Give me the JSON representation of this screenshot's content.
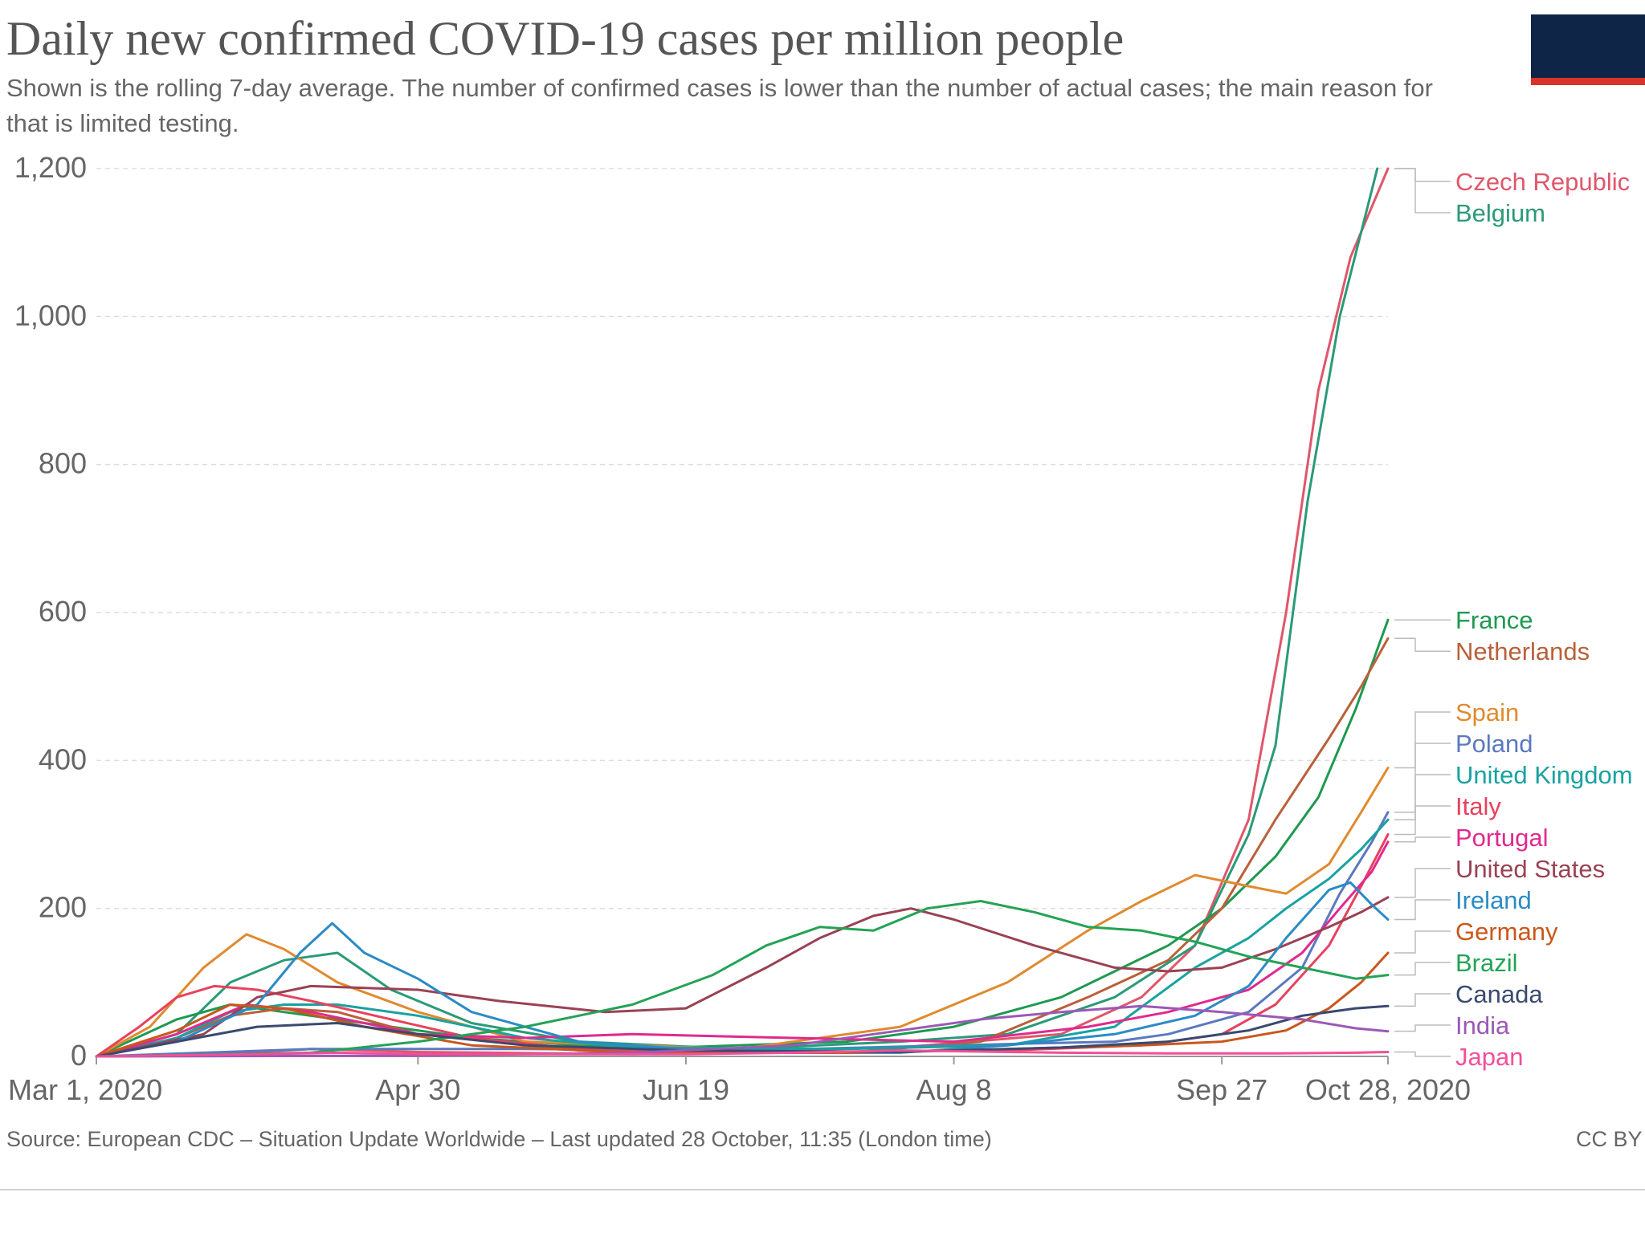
{
  "header": {
    "title": "Daily new confirmed COVID-19 cases per million people",
    "subtitle": "Shown is the rolling 7-day average. The number of confirmed cases is lower than the number of actual cases; the main reason for that is limited testing.",
    "logo_colors": {
      "background": "#0f2547",
      "stripe": "#d9342b"
    }
  },
  "footer": {
    "source": "Source: European CDC – Situation Update Worldwide – Last updated 28 October, 11:35 (London time)",
    "license": "CC BY"
  },
  "chart_data": {
    "type": "line",
    "title": "Daily new confirmed COVID-19 cases per million people",
    "xlabel": "",
    "ylabel": "",
    "x_range_days": [
      0,
      241
    ],
    "ylim": [
      0,
      1200
    ],
    "y_ticks": [
      0,
      200,
      400,
      600,
      800,
      1000,
      1200
    ],
    "y_tick_labels": [
      "0",
      "200",
      "400",
      "600",
      "800",
      "1,000",
      "1,200"
    ],
    "x_ticks": [
      {
        "day": 0,
        "label": "Mar 1, 2020"
      },
      {
        "day": 60,
        "label": "Apr 30"
      },
      {
        "day": 110,
        "label": "Jun 19"
      },
      {
        "day": 160,
        "label": "Aug 8"
      },
      {
        "day": 210,
        "label": "Sep 27"
      },
      {
        "day": 241,
        "label": "Oct 28, 2020"
      }
    ],
    "grid": "horizontal-dashed",
    "legend": "right, labels at line ends",
    "series": [
      {
        "name": "Czech Republic",
        "color": "#e0566a",
        "points": [
          [
            0,
            0
          ],
          [
            20,
            2
          ],
          [
            40,
            10
          ],
          [
            60,
            6
          ],
          [
            100,
            3
          ],
          [
            150,
            12
          ],
          [
            180,
            30
          ],
          [
            195,
            80
          ],
          [
            205,
            150
          ],
          [
            215,
            320
          ],
          [
            222,
            600
          ],
          [
            228,
            900
          ],
          [
            234,
            1080
          ],
          [
            241,
            1200
          ]
        ]
      },
      {
        "name": "Belgium",
        "color": "#2a9a77",
        "points": [
          [
            0,
            0
          ],
          [
            15,
            30
          ],
          [
            25,
            100
          ],
          [
            35,
            130
          ],
          [
            45,
            140
          ],
          [
            55,
            90
          ],
          [
            70,
            45
          ],
          [
            90,
            20
          ],
          [
            120,
            10
          ],
          [
            150,
            20
          ],
          [
            170,
            30
          ],
          [
            190,
            80
          ],
          [
            205,
            150
          ],
          [
            215,
            300
          ],
          [
            220,
            420
          ],
          [
            226,
            750
          ],
          [
            232,
            1000
          ],
          [
            239,
            1200
          ]
        ]
      },
      {
        "name": "France",
        "color": "#1e9950",
        "points": [
          [
            0,
            0
          ],
          [
            15,
            50
          ],
          [
            25,
            70
          ],
          [
            35,
            60
          ],
          [
            50,
            45
          ],
          [
            70,
            25
          ],
          [
            100,
            10
          ],
          [
            140,
            20
          ],
          [
            160,
            40
          ],
          [
            180,
            80
          ],
          [
            200,
            150
          ],
          [
            210,
            200
          ],
          [
            220,
            270
          ],
          [
            228,
            350
          ],
          [
            235,
            470
          ],
          [
            241,
            590
          ]
        ]
      },
      {
        "name": "Netherlands",
        "color": "#b9603a",
        "points": [
          [
            0,
            0
          ],
          [
            15,
            25
          ],
          [
            25,
            55
          ],
          [
            35,
            65
          ],
          [
            45,
            60
          ],
          [
            60,
            30
          ],
          [
            90,
            8
          ],
          [
            140,
            5
          ],
          [
            165,
            20
          ],
          [
            185,
            80
          ],
          [
            200,
            130
          ],
          [
            210,
            200
          ],
          [
            220,
            320
          ],
          [
            230,
            430
          ],
          [
            236,
            500
          ],
          [
            241,
            565
          ]
        ]
      },
      {
        "name": "Spain",
        "color": "#e08a2e",
        "points": [
          [
            0,
            0
          ],
          [
            10,
            40
          ],
          [
            20,
            120
          ],
          [
            28,
            165
          ],
          [
            35,
            145
          ],
          [
            45,
            100
          ],
          [
            60,
            60
          ],
          [
            80,
            20
          ],
          [
            120,
            10
          ],
          [
            150,
            40
          ],
          [
            170,
            100
          ],
          [
            185,
            170
          ],
          [
            195,
            210
          ],
          [
            205,
            245
          ],
          [
            215,
            230
          ],
          [
            222,
            220
          ],
          [
            230,
            260
          ],
          [
            236,
            330
          ],
          [
            241,
            390
          ]
        ]
      },
      {
        "name": "Poland",
        "color": "#5b79c0",
        "points": [
          [
            0,
            0
          ],
          [
            20,
            5
          ],
          [
            40,
            10
          ],
          [
            80,
            10
          ],
          [
            120,
            8
          ],
          [
            160,
            15
          ],
          [
            190,
            20
          ],
          [
            200,
            30
          ],
          [
            215,
            60
          ],
          [
            225,
            120
          ],
          [
            232,
            220
          ],
          [
            238,
            290
          ],
          [
            241,
            330
          ]
        ]
      },
      {
        "name": "United Kingdom",
        "color": "#18a2a0",
        "points": [
          [
            0,
            0
          ],
          [
            15,
            25
          ],
          [
            25,
            60
          ],
          [
            35,
            70
          ],
          [
            45,
            70
          ],
          [
            60,
            55
          ],
          [
            80,
            25
          ],
          [
            100,
            12
          ],
          [
            140,
            10
          ],
          [
            170,
            15
          ],
          [
            190,
            40
          ],
          [
            205,
            120
          ],
          [
            215,
            160
          ],
          [
            222,
            200
          ],
          [
            230,
            240
          ],
          [
            236,
            280
          ],
          [
            241,
            320
          ]
        ]
      },
      {
        "name": "Italy",
        "color": "#e7425d",
        "points": [
          [
            0,
            0
          ],
          [
            8,
            40
          ],
          [
            15,
            80
          ],
          [
            22,
            95
          ],
          [
            30,
            90
          ],
          [
            40,
            75
          ],
          [
            55,
            50
          ],
          [
            70,
            25
          ],
          [
            90,
            10
          ],
          [
            130,
            6
          ],
          [
            170,
            8
          ],
          [
            195,
            15
          ],
          [
            210,
            30
          ],
          [
            220,
            70
          ],
          [
            230,
            150
          ],
          [
            236,
            230
          ],
          [
            241,
            300
          ]
        ]
      },
      {
        "name": "Portugal",
        "color": "#e02a8e",
        "points": [
          [
            0,
            0
          ],
          [
            15,
            30
          ],
          [
            28,
            70
          ],
          [
            40,
            60
          ],
          [
            60,
            30
          ],
          [
            80,
            25
          ],
          [
            100,
            30
          ],
          [
            130,
            25
          ],
          [
            160,
            20
          ],
          [
            185,
            40
          ],
          [
            200,
            60
          ],
          [
            215,
            90
          ],
          [
            225,
            140
          ],
          [
            232,
            200
          ],
          [
            238,
            250
          ],
          [
            241,
            290
          ]
        ]
      },
      {
        "name": "United States",
        "color": "#9a4254",
        "points": [
          [
            0,
            0
          ],
          [
            20,
            30
          ],
          [
            30,
            80
          ],
          [
            40,
            95
          ],
          [
            60,
            90
          ],
          [
            75,
            75
          ],
          [
            95,
            60
          ],
          [
            110,
            65
          ],
          [
            125,
            120
          ],
          [
            135,
            160
          ],
          [
            145,
            190
          ],
          [
            152,
            200
          ],
          [
            160,
            185
          ],
          [
            175,
            150
          ],
          [
            190,
            120
          ],
          [
            200,
            115
          ],
          [
            210,
            120
          ],
          [
            220,
            145
          ],
          [
            230,
            175
          ],
          [
            236,
            195
          ],
          [
            241,
            215
          ]
        ]
      },
      {
        "name": "Ireland",
        "color": "#2b8bc6",
        "points": [
          [
            0,
            0
          ],
          [
            15,
            20
          ],
          [
            30,
            70
          ],
          [
            38,
            140
          ],
          [
            44,
            180
          ],
          [
            50,
            140
          ],
          [
            60,
            105
          ],
          [
            70,
            60
          ],
          [
            90,
            20
          ],
          [
            120,
            5
          ],
          [
            150,
            5
          ],
          [
            170,
            15
          ],
          [
            190,
            30
          ],
          [
            205,
            55
          ],
          [
            215,
            95
          ],
          [
            222,
            160
          ],
          [
            230,
            225
          ],
          [
            234,
            235
          ],
          [
            238,
            205
          ],
          [
            241,
            185
          ]
        ]
      },
      {
        "name": "Germany",
        "color": "#c9571b",
        "points": [
          [
            0,
            0
          ],
          [
            15,
            35
          ],
          [
            25,
            70
          ],
          [
            35,
            65
          ],
          [
            50,
            40
          ],
          [
            70,
            15
          ],
          [
            100,
            5
          ],
          [
            140,
            5
          ],
          [
            170,
            10
          ],
          [
            195,
            15
          ],
          [
            210,
            20
          ],
          [
            222,
            35
          ],
          [
            230,
            65
          ],
          [
            236,
            100
          ],
          [
            241,
            140
          ]
        ]
      },
      {
        "name": "Brazil",
        "color": "#23a356",
        "points": [
          [
            0,
            0
          ],
          [
            40,
            5
          ],
          [
            60,
            20
          ],
          [
            80,
            40
          ],
          [
            100,
            70
          ],
          [
            115,
            110
          ],
          [
            125,
            150
          ],
          [
            135,
            175
          ],
          [
            145,
            170
          ],
          [
            155,
            200
          ],
          [
            165,
            210
          ],
          [
            175,
            195
          ],
          [
            185,
            175
          ],
          [
            195,
            170
          ],
          [
            205,
            155
          ],
          [
            215,
            135
          ],
          [
            225,
            120
          ],
          [
            235,
            105
          ],
          [
            241,
            110
          ]
        ]
      },
      {
        "name": "Canada",
        "color": "#3a4a70",
        "points": [
          [
            0,
            0
          ],
          [
            15,
            20
          ],
          [
            30,
            40
          ],
          [
            45,
            45
          ],
          [
            60,
            30
          ],
          [
            80,
            15
          ],
          [
            110,
            8
          ],
          [
            150,
            6
          ],
          [
            180,
            12
          ],
          [
            200,
            20
          ],
          [
            215,
            35
          ],
          [
            225,
            55
          ],
          [
            235,
            65
          ],
          [
            241,
            68
          ]
        ]
      },
      {
        "name": "India",
        "color": "#9b59b6",
        "points": [
          [
            0,
            0
          ],
          [
            60,
            1
          ],
          [
            100,
            5
          ],
          [
            130,
            15
          ],
          [
            150,
            35
          ],
          [
            165,
            50
          ],
          [
            180,
            60
          ],
          [
            195,
            68
          ],
          [
            210,
            60
          ],
          [
            225,
            50
          ],
          [
            235,
            38
          ],
          [
            241,
            34
          ]
        ]
      },
      {
        "name": "Japan",
        "color": "#f24f9a",
        "points": [
          [
            0,
            0
          ],
          [
            30,
            3
          ],
          [
            45,
            5
          ],
          [
            60,
            3
          ],
          [
            110,
            3
          ],
          [
            130,
            5
          ],
          [
            150,
            8
          ],
          [
            180,
            5
          ],
          [
            200,
            4
          ],
          [
            220,
            4
          ],
          [
            235,
            5
          ],
          [
            241,
            6
          ]
        ]
      }
    ]
  }
}
